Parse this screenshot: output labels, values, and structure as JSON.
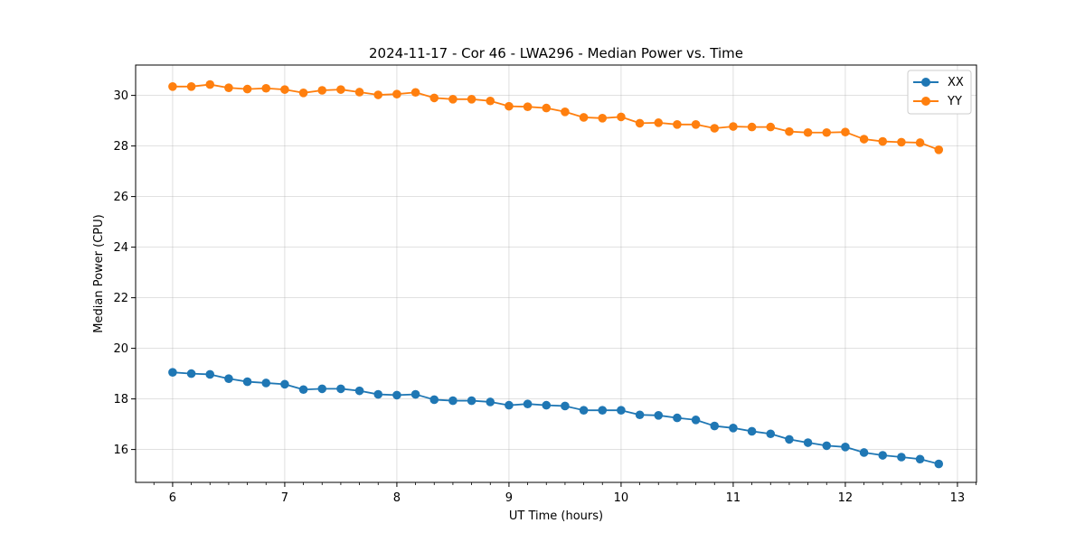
{
  "chart_data": {
    "type": "line",
    "title": "2024-11-17 - Cor 46 - LWA296 - Median Power vs. Time",
    "xlabel": "UT Time (hours)",
    "ylabel": "Median Power (CPU)",
    "xlim": [
      5.67,
      13.17
    ],
    "ylim": [
      14.7,
      31.2
    ],
    "xticks": [
      6,
      7,
      8,
      9,
      10,
      11,
      12,
      13
    ],
    "yticks": [
      16,
      18,
      20,
      22,
      24,
      26,
      28,
      30
    ],
    "grid": true,
    "legend_position": "top-right",
    "x": [
      6.0,
      6.1667,
      6.3333,
      6.5,
      6.6667,
      6.8333,
      7.0,
      7.1667,
      7.3333,
      7.5,
      7.6667,
      7.8333,
      8.0,
      8.1667,
      8.3333,
      8.5,
      8.6667,
      8.8333,
      9.0,
      9.1667,
      9.3333,
      9.5,
      9.6667,
      9.8333,
      10.0,
      10.1667,
      10.3333,
      10.5,
      10.6667,
      10.8333,
      11.0,
      11.1667,
      11.3333,
      11.5,
      11.6667,
      11.8333,
      12.0,
      12.1667,
      12.3333,
      12.5,
      12.6667,
      12.8333
    ],
    "series": [
      {
        "name": "XX",
        "color": "#1f77b4",
        "values": [
          19.05,
          19.0,
          18.97,
          18.8,
          18.68,
          18.63,
          18.58,
          18.37,
          18.4,
          18.4,
          18.32,
          18.18,
          18.15,
          18.18,
          17.97,
          17.93,
          17.93,
          17.88,
          17.75,
          17.8,
          17.75,
          17.72,
          17.55,
          17.55,
          17.55,
          17.37,
          17.35,
          17.25,
          17.17,
          16.93,
          16.85,
          16.72,
          16.62,
          16.4,
          16.27,
          16.15,
          16.1,
          15.88,
          15.77,
          15.7,
          15.62,
          15.43
        ]
      },
      {
        "name": "YY",
        "color": "#ff7f0e",
        "values": [
          30.35,
          30.35,
          30.43,
          30.3,
          30.25,
          30.28,
          30.23,
          30.1,
          30.2,
          30.23,
          30.13,
          30.02,
          30.05,
          30.12,
          29.9,
          29.85,
          29.85,
          29.78,
          29.57,
          29.55,
          29.5,
          29.35,
          29.13,
          29.1,
          29.15,
          28.9,
          28.92,
          28.85,
          28.85,
          28.7,
          28.77,
          28.75,
          28.75,
          28.57,
          28.53,
          28.53,
          28.55,
          28.27,
          28.18,
          28.15,
          28.13,
          27.85
        ]
      }
    ]
  }
}
